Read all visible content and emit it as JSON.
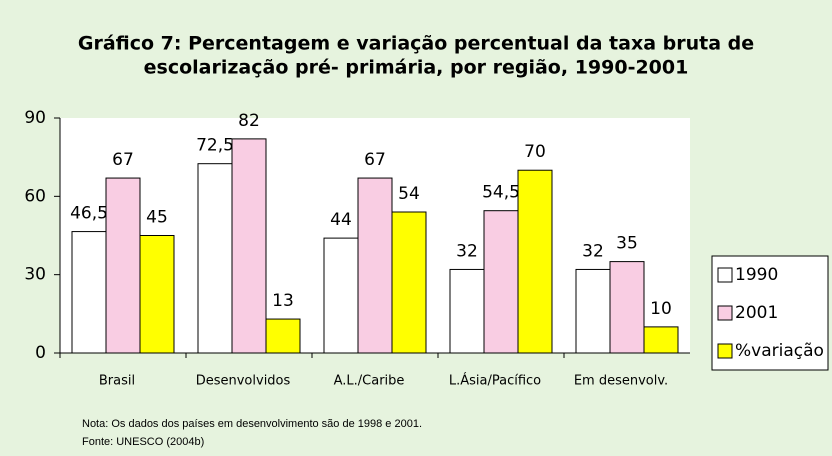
{
  "chart_data": {
    "type": "bar",
    "title": [
      "Gráfico 7: Percentagem e variação percentual da taxa bruta de",
      "escolarização pré- primária, por região, 1990-2001"
    ],
    "categories": [
      "Brasil",
      "Desenvolvidos",
      "A.L./Caribe",
      "L.Ásia/Pacífico",
      "Em desenvolv."
    ],
    "series": [
      {
        "name": "1990",
        "color": "#ffffff",
        "values": [
          46.5,
          72.5,
          44,
          32,
          32
        ],
        "value_labels": [
          "46,5",
          "72,5",
          "44",
          "32",
          "32"
        ]
      },
      {
        "name": "2001",
        "color": "#f9cde3",
        "values": [
          67,
          82,
          67,
          54.5,
          35
        ],
        "value_labels": [
          "67",
          "82",
          "67",
          "54,5",
          "35"
        ]
      },
      {
        "name": "%variação",
        "color": "#ffff00",
        "values": [
          45,
          13,
          54,
          70,
          10
        ],
        "value_labels": [
          "45",
          "13",
          "54",
          "70",
          "10"
        ]
      }
    ],
    "ylim": [
      0,
      90
    ],
    "yticks": [
      0,
      30,
      60,
      90
    ],
    "grid": false,
    "legend": "right",
    "note": "Nota: Os dados dos países em desenvolvimento são de 1998 e 2001.",
    "source": "Fonte: UNESCO (2004b)"
  }
}
